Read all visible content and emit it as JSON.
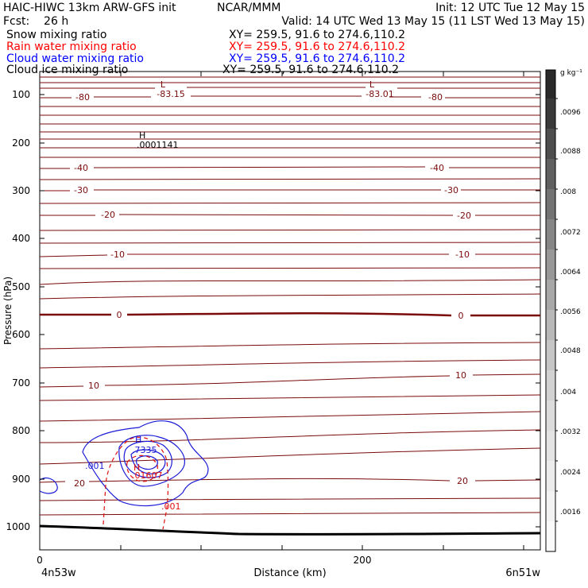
{
  "header": {
    "title_left": "HAIC-HIWC 13km ARW-GFS init",
    "title_center": "NCAR/MMM",
    "init_text": "Init: 12 UTC Tue 12 May 15",
    "fcst_text": "Fcst:    26 h",
    "valid_text": "Valid: 14 UTC Wed 13 May 15 (11 LST Wed 13 May 15)",
    "fields": [
      {
        "label": "Snow mixing ratio",
        "xy": "XY= 259.5, 91.6 to 274.6,110.2",
        "color": "#000000"
      },
      {
        "label": "Rain water mixing ratio",
        "xy": "XY= 259.5, 91.6 to 274.6,110.2",
        "color": "#ff0000"
      },
      {
        "label": "Cloud water mixing ratio",
        "xy": "XY= 259.5, 91.6 to 274.6,110.2",
        "color": "#0000ff"
      },
      {
        "label": "Cloud ice mixing ratio",
        "xy": "XY= 259.5, 91.6 to 274.6,110.2",
        "color": "#000000"
      }
    ]
  },
  "plot": {
    "y_axis_label": "Pressure (hPa)",
    "x_axis_label": "Distance (km)",
    "y_ticks": [
      "100",
      "200",
      "300",
      "400",
      "500",
      "600",
      "700",
      "800",
      "900",
      "1000"
    ],
    "x_ticks": [
      "0",
      "200"
    ],
    "left_location": "4n53w",
    "right_location": "6n51w",
    "temp_color": "#7a0a0a",
    "cloud_color": "#1a1ad6",
    "rain_color": "#e01010",
    "labels": {
      "low1_letter": "L",
      "low1_value": "-83.15",
      "low2_letter": "L",
      "low2_value": "-83.01",
      "high_letter": "H",
      "high_value": ".0001141",
      "t80a": "-80",
      "t80b": "-80",
      "t40a": "-40",
      "t40b": "-40",
      "t30a": "-30",
      "t30b": "-30",
      "t20a": "-20",
      "t20b": "-20",
      "t10a": "-10",
      "t10b": "-10",
      "t0a": "0",
      "t0b": "0",
      "tp10a": "10",
      "tp10b": "10",
      "tp20a": "20",
      "tp20b": "20",
      "cw_high_letter": "H",
      "cw_high_value": ".7335",
      "cw_001": ".001",
      "rain_high_letter": "H",
      "rain_high_value": ".01607",
      "rain_001": ".001"
    }
  },
  "colorbar": {
    "unit": "g kg⁻¹",
    "labels": [
      ".0096",
      ".0088",
      ".008",
      ".0072",
      ".0064",
      ".0056",
      ".0048",
      ".004",
      ".0032",
      ".0024",
      ".0016"
    ]
  }
}
